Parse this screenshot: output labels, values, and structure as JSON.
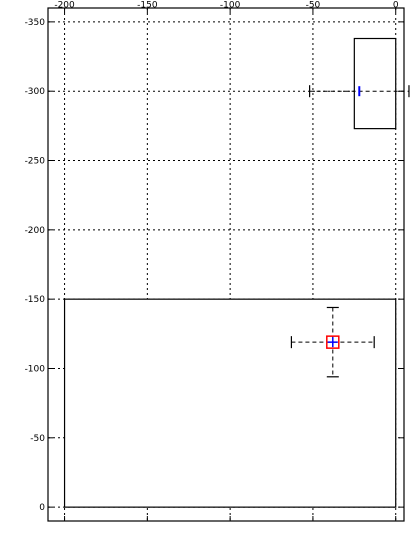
{
  "chart_data": {
    "type": "scatter",
    "title": "",
    "xlabel": "",
    "ylabel": "",
    "x_axis": {
      "position": "top",
      "range": [
        -210,
        5
      ],
      "ticks": [
        -200,
        -150,
        -100,
        -50,
        0
      ],
      "tick_labels": [
        "-200",
        "-150",
        "-100",
        "-50",
        "0"
      ]
    },
    "y_axis": {
      "position": "left",
      "reversed": true,
      "range": [
        -360,
        10
      ],
      "ticks": [
        -350,
        -300,
        -250,
        -200,
        -150,
        -100,
        -50,
        0
      ],
      "tick_labels": [
        "-350",
        "-300",
        "-250",
        "-200",
        "-150",
        "-100",
        "-50",
        "0"
      ]
    },
    "grid": true,
    "grid_style": "dotted",
    "colors": {
      "marker_box": "#ff0000",
      "marker_cross": "#0000ff",
      "error_bars": "#000000",
      "axes": "#000000"
    },
    "regions": [
      {
        "x": [
          -200,
          0
        ],
        "y": [
          0,
          -150
        ]
      },
      {
        "x": [
          -25,
          0
        ],
        "y": [
          -273,
          -338
        ]
      }
    ],
    "points": [
      {
        "x": -38,
        "y": -119,
        "x_err": 25,
        "y_err": 25,
        "marker": "red-square-blue-cross"
      },
      {
        "x": -22,
        "y": -300,
        "x_err": 30,
        "y_err": 0,
        "marker": "blue-tick"
      }
    ]
  }
}
